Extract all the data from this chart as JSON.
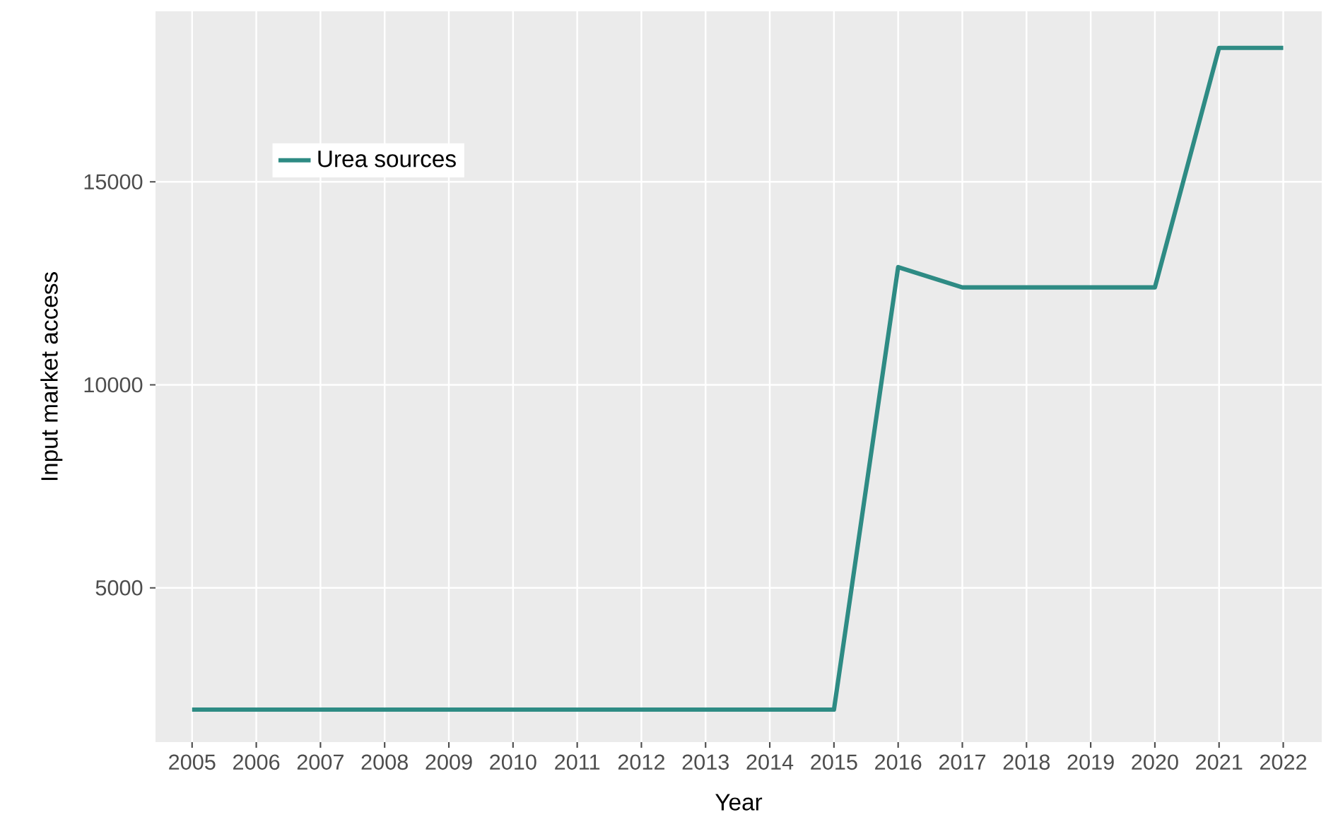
{
  "chart_data": {
    "type": "line",
    "xlabel": "Year",
    "ylabel": "Input market access",
    "x": [
      2005,
      2006,
      2007,
      2008,
      2009,
      2010,
      2011,
      2012,
      2013,
      2014,
      2015,
      2016,
      2017,
      2018,
      2019,
      2020,
      2021,
      2022
    ],
    "series": [
      {
        "name": "Urea sources",
        "color": "#2e8b84",
        "values": [
          2000,
          2000,
          2000,
          2000,
          2000,
          2000,
          2000,
          2000,
          2000,
          2000,
          2000,
          12900,
          12400,
          12400,
          12400,
          12400,
          18300,
          18300
        ]
      }
    ],
    "xlim": [
      2004.43,
      2022.6
    ],
    "ylim": [
      1200,
      19200
    ],
    "xticks": [
      2005,
      2006,
      2007,
      2008,
      2009,
      2010,
      2011,
      2012,
      2013,
      2014,
      2015,
      2016,
      2017,
      2018,
      2019,
      2020,
      2021,
      2022
    ],
    "yticks": [
      5000,
      10000,
      15000
    ],
    "grid": true,
    "legend": "top left",
    "line_style": "solid",
    "marker": "none"
  }
}
